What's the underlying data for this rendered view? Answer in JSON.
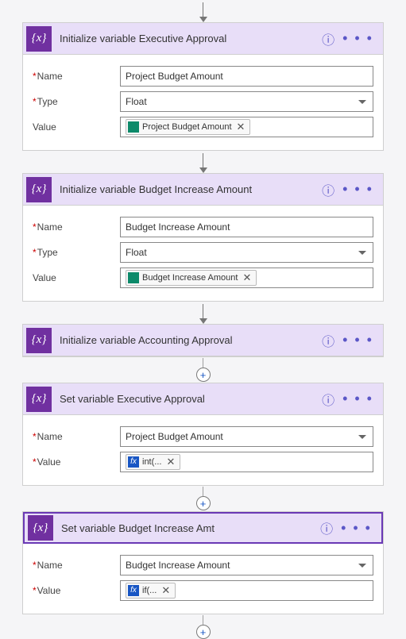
{
  "colors": {
    "header_bg": "#e8def8",
    "icon_bg": "#7030a0",
    "accent": "#5b57c7",
    "chip_green": "#0d8a6a",
    "chip_blue": "#1856c4",
    "arrow": "#767676"
  },
  "icon_text": "{x}",
  "help_glyph": "ⓘ",
  "more_glyph": "• • •",
  "plus_glyph": "+",
  "remove_glyph": "✕",
  "labels": {
    "name": "Name",
    "type": "Type",
    "value": "Value"
  },
  "steps": [
    {
      "id": "init-exec-approval",
      "title": "Initialize variable Executive Approval",
      "collapsed": false,
      "rows": [
        {
          "label_key": "name",
          "required": true,
          "kind": "text",
          "value": "Project Budget Amount"
        },
        {
          "label_key": "type",
          "required": true,
          "kind": "select",
          "value": "Float"
        },
        {
          "label_key": "value",
          "required": false,
          "kind": "chip",
          "chip_icon": "green",
          "chip_text": "Project Budget Amount"
        }
      ],
      "after": "arrow"
    },
    {
      "id": "init-budget-increase",
      "title": "Initialize variable Budget Increase Amount",
      "collapsed": false,
      "rows": [
        {
          "label_key": "name",
          "required": true,
          "kind": "text",
          "value": "Budget Increase Amount"
        },
        {
          "label_key": "type",
          "required": true,
          "kind": "select",
          "value": "Float"
        },
        {
          "label_key": "value",
          "required": false,
          "kind": "chip",
          "chip_icon": "green",
          "chip_text": "Budget Increase Amount"
        }
      ],
      "after": "arrow"
    },
    {
      "id": "init-accounting-approval",
      "title": "Initialize variable Accounting Approval",
      "collapsed": true,
      "rows": [],
      "after": "plus"
    },
    {
      "id": "set-exec-approval",
      "title": "Set variable Executive Approval",
      "collapsed": false,
      "rows": [
        {
          "label_key": "name",
          "required": true,
          "kind": "select",
          "value": "Project Budget Amount"
        },
        {
          "label_key": "value",
          "required": true,
          "kind": "chip",
          "chip_icon": "fx",
          "chip_text": "int(..."
        }
      ],
      "after": "plus"
    },
    {
      "id": "set-budget-increase-amt",
      "title": "Set variable Budget Increase Amt",
      "collapsed": false,
      "selected": true,
      "rows": [
        {
          "label_key": "name",
          "required": true,
          "kind": "select",
          "value": "Budget Increase Amount"
        },
        {
          "label_key": "value",
          "required": true,
          "kind": "chip",
          "chip_icon": "fx",
          "chip_text": "if(..."
        }
      ],
      "after": "plus-only"
    }
  ]
}
